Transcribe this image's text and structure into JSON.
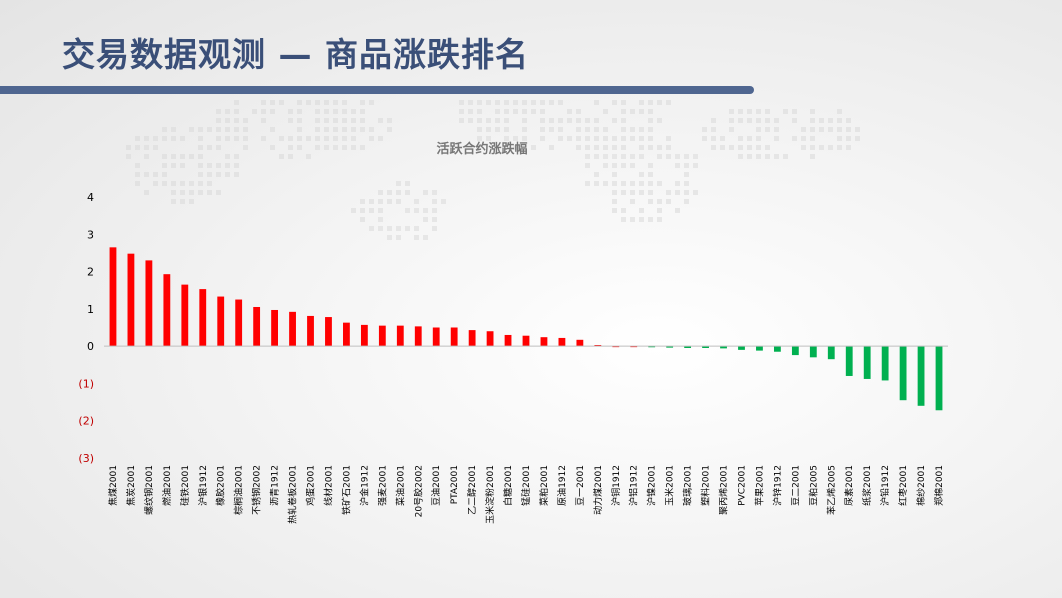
{
  "slide": {
    "title": "交易数据观测 — 商品涨跌排名"
  },
  "colors": {
    "positive": "#ff0000",
    "negative": "#00b050",
    "title": "#3a4f78",
    "title_rule": "#4f6690"
  },
  "chart_data": {
    "type": "bar",
    "title": "活跃合约涨跌幅",
    "xlabel": "",
    "ylabel": "",
    "ylim": [
      -3,
      4
    ],
    "yticks": [
      {
        "value": 4,
        "label": "4"
      },
      {
        "value": 3,
        "label": "3"
      },
      {
        "value": 2,
        "label": "2"
      },
      {
        "value": 1,
        "label": "1"
      },
      {
        "value": 0,
        "label": "0"
      },
      {
        "value": -1,
        "label": "(1)"
      },
      {
        "value": -2,
        "label": "(2)"
      },
      {
        "value": -3,
        "label": "(3)"
      }
    ],
    "grid": false,
    "legend": "none",
    "categories": [
      "焦煤2001",
      "焦炭2001",
      "螺纹钢2001",
      "燃油2001",
      "硅铁2001",
      "沪银1912",
      "橡胶2001",
      "棕榈油2001",
      "不锈钢2002",
      "沥青1912",
      "热轧卷板2001",
      "鸡蛋2001",
      "线材2001",
      "铁矿石2001",
      "沪金1912",
      "强麦2001",
      "菜油2001",
      "20号胶2002",
      "豆油2001",
      "PTA2001",
      "乙二醇2001",
      "玉米淀粉2001",
      "白糖2001",
      "锰硅2001",
      "菜粕2001",
      "原油1912",
      "豆一2001",
      "动力煤2001",
      "沪铜1912",
      "沪铝1912",
      "沪镍2001",
      "玉米2001",
      "玻璃2001",
      "塑料2001",
      "聚丙烯2001",
      "PVC2001",
      "苹果2001",
      "沪锌1912",
      "豆二2001",
      "豆粕2005",
      "苯乙烯2005",
      "尿素2001",
      "纸浆2001",
      "沪铅1912",
      "红枣2001",
      "棉纱2001",
      "郑棉2001"
    ],
    "values": [
      2.65,
      2.48,
      2.3,
      1.93,
      1.65,
      1.53,
      1.33,
      1.25,
      1.05,
      0.97,
      0.92,
      0.81,
      0.78,
      0.63,
      0.57,
      0.55,
      0.55,
      0.53,
      0.5,
      0.5,
      0.43,
      0.4,
      0.3,
      0.28,
      0.24,
      0.22,
      0.17,
      0.03,
      0.0,
      0.0,
      -0.03,
      -0.04,
      -0.05,
      -0.05,
      -0.06,
      -0.1,
      -0.12,
      -0.15,
      -0.24,
      -0.3,
      -0.35,
      -0.8,
      -0.88,
      -0.92,
      -1.45,
      -1.6,
      -1.72
    ]
  }
}
